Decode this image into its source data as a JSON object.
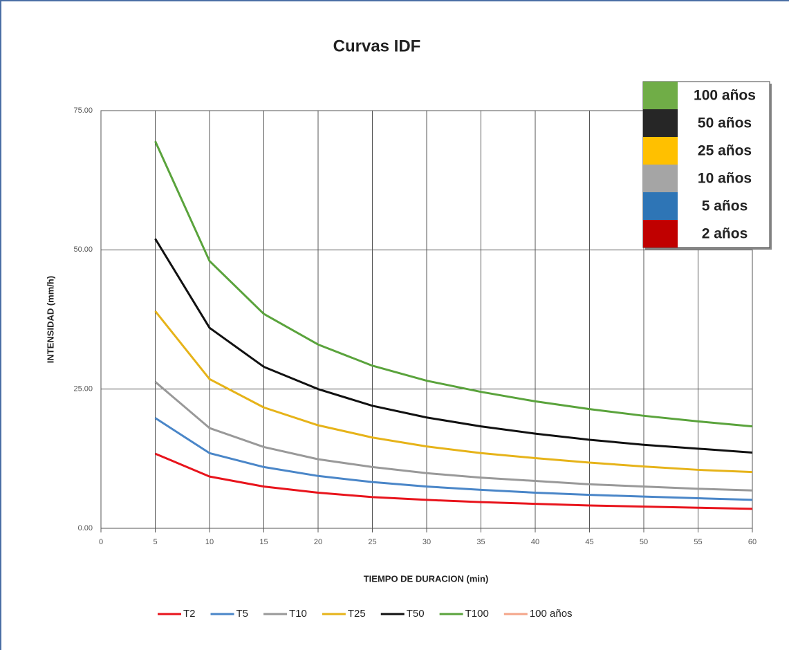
{
  "chart_data": {
    "type": "line",
    "title": "Curvas IDF",
    "x_label": "TIEMPO DE DURACION (min)",
    "y_label": "INTENSIDAD (mm/h)",
    "x": [
      5,
      10,
      15,
      20,
      25,
      30,
      35,
      40,
      45,
      50,
      55,
      60
    ],
    "xlim": [
      0,
      60
    ],
    "xticks": [
      0,
      5,
      10,
      15,
      20,
      25,
      30,
      35,
      40,
      45,
      50,
      55,
      60
    ],
    "ylim": [
      0,
      75
    ],
    "yticks": [
      {
        "value": 0,
        "label": "0.00"
      },
      {
        "value": 25,
        "label": "25.00"
      },
      {
        "value": 50,
        "label": "50.00"
      },
      {
        "value": 75,
        "label": "75.00"
      }
    ],
    "grid": true,
    "legend": "bottom",
    "series": [
      {
        "name": "T2",
        "color": "#e8141c",
        "values": [
          13.4,
          9.3,
          7.5,
          6.4,
          5.6,
          5.1,
          4.7,
          4.4,
          4.1,
          3.9,
          3.7,
          3.5
        ]
      },
      {
        "name": "T5",
        "color": "#4a86c8",
        "values": [
          19.8,
          13.5,
          11,
          9.4,
          8.3,
          7.5,
          6.9,
          6.4,
          6.0,
          5.7,
          5.4,
          5.1
        ]
      },
      {
        "name": "T10",
        "color": "#999999",
        "values": [
          26.3,
          18,
          14.6,
          12.4,
          11,
          9.9,
          9.1,
          8.5,
          7.9,
          7.5,
          7.1,
          6.8
        ]
      },
      {
        "name": "T25",
        "color": "#e6b319",
        "values": [
          39,
          26.8,
          21.7,
          18.5,
          16.3,
          14.7,
          13.5,
          12.6,
          11.8,
          11.1,
          10.5,
          10.1
        ]
      },
      {
        "name": "T50",
        "color": "#111111",
        "values": [
          52,
          36,
          29,
          25,
          22,
          19.9,
          18.3,
          17,
          15.9,
          15,
          14.3,
          13.6
        ]
      },
      {
        "name": "T100",
        "color": "#5aa33c",
        "values": [
          69.5,
          48,
          38.5,
          33,
          29.2,
          26.5,
          24.5,
          22.8,
          21.4,
          20.2,
          19.2,
          18.3
        ]
      },
      {
        "name": "100 años",
        "color": "#f4a58a",
        "values": [
          null,
          null,
          null,
          null,
          null,
          null,
          null,
          null,
          null,
          null,
          null,
          null
        ]
      }
    ],
    "key_box": [
      {
        "label": "100 años",
        "color": "#70ad47"
      },
      {
        "label": "50 años",
        "color": "#262626"
      },
      {
        "label": "25 años",
        "color": "#ffc000"
      },
      {
        "label": "10 años",
        "color": "#a5a5a5"
      },
      {
        "label": "5 años",
        "color": "#2e75b6"
      },
      {
        "label": "2 años",
        "color": "#c00000"
      }
    ]
  }
}
